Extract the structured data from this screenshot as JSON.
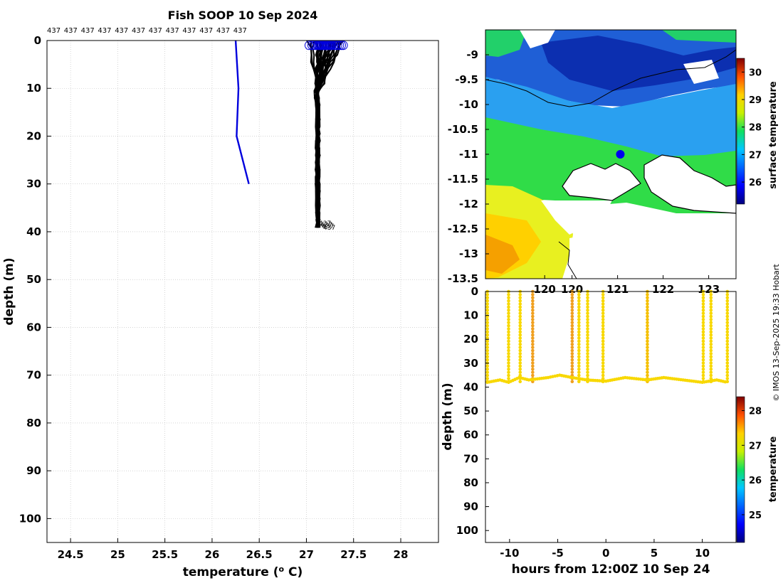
{
  "chart_data": [
    {
      "type": "line",
      "title": "Fish SOOP 10 Sep 2024",
      "xlabel": "temperature (",
      "xlabel_sup": "o",
      "xlabel_end": " C)",
      "ylabel": "depth (m)",
      "xlim": [
        24.25,
        28.4
      ],
      "ylim": [
        105,
        0
      ],
      "xticks": [
        24.5,
        25,
        25.5,
        26,
        26.5,
        27,
        27.5,
        28
      ],
      "xtick_labels": [
        "24.5",
        "25",
        "25.5",
        "26",
        "26.5",
        "27",
        "27.5",
        "28"
      ],
      "yticks": [
        0,
        10,
        20,
        30,
        40,
        50,
        60,
        70,
        80,
        90,
        100
      ],
      "ytick_labels": [
        "0",
        "10",
        "20",
        "30",
        "40",
        "50",
        "60",
        "70",
        "80",
        "90",
        "100"
      ],
      "grid": true,
      "profile_id_labels": [
        "437",
        "437",
        "437",
        "437",
        "437",
        "437",
        "437",
        "437",
        "437",
        "437",
        "437",
        "437"
      ],
      "end_label": "437",
      "series": [
        {
          "name": "climatology",
          "color": "#0000dd",
          "points": [
            [
              26.25,
              0
            ],
            [
              26.28,
              10
            ],
            [
              26.26,
              20
            ],
            [
              26.39,
              30
            ]
          ]
        },
        {
          "name": "fish profiles",
          "color": "#000000",
          "count": 26,
          "surface_temps": [
            27.03,
            27.06,
            27.08,
            27.1,
            27.12,
            27.13,
            27.15,
            27.16,
            27.17,
            27.18,
            27.19,
            27.2,
            27.21,
            27.22,
            27.23,
            27.24,
            27.25,
            27.27,
            27.29,
            27.31,
            27.33,
            27.35,
            27.37,
            27.39,
            27.14,
            27.26
          ],
          "bottom_temp": 27.11,
          "max_depth": 39
        }
      ],
      "markers": {
        "shape": "circle",
        "color": "#0000dd",
        "depth": 1
      }
    },
    {
      "type": "heatmap",
      "colorbar_label": "surface temperature",
      "colorbar_ticks": [
        "26",
        "27",
        "28",
        "29",
        "30"
      ],
      "colorbar_range": [
        25.2,
        30.5
      ],
      "ytick_labels": [
        "-9",
        "-9.5",
        "-10",
        "-10.5",
        "-11",
        "-11.5",
        "-12",
        "-12.5",
        "-13",
        "-13.5"
      ],
      "yticks": [
        -9,
        -9.5,
        -10,
        -10.5,
        -11,
        -11.5,
        -12,
        -12.5,
        -13,
        -13.5
      ],
      "ylim": [
        -13.5,
        -8.5
      ],
      "xtick_labels": [
        "120",
        "120",
        "121",
        "122",
        "123"
      ],
      "xticks": [
        119.4,
        120,
        121,
        122,
        123
      ],
      "xlim": [
        118.1,
        123.6
      ],
      "location_marker": {
        "lon": 121.06,
        "lat": -11.0,
        "color": "#0000ee"
      }
    },
    {
      "type": "scatter",
      "xlabel": "hours from 12:00Z 10 Sep 24",
      "ylabel": "depth (m)",
      "colorbar_label": "temperature",
      "colorbar_ticks": [
        "25",
        "26",
        "27",
        "28"
      ],
      "colorbar_range": [
        24.2,
        28.4
      ],
      "xlim": [
        -12.5,
        13.5
      ],
      "ylim": [
        105,
        0
      ],
      "xticks": [
        -10,
        -5,
        0,
        5,
        10
      ],
      "xtick_labels": [
        "-10",
        "-5",
        "0",
        "5",
        "10"
      ],
      "yticks": [
        0,
        10,
        20,
        30,
        40,
        50,
        60,
        70,
        80,
        90,
        100
      ],
      "ytick_labels": [
        "0",
        "10",
        "20",
        "30",
        "40",
        "50",
        "60",
        "70",
        "80",
        "90",
        "100"
      ],
      "casts": [
        {
          "t": -12.3,
          "temp": 27.1
        },
        {
          "t": -10.1,
          "temp": 27.1
        },
        {
          "t": -8.9,
          "temp": 27.1
        },
        {
          "t": -7.6,
          "temp": 27.4
        },
        {
          "t": -3.5,
          "temp": 27.4
        },
        {
          "t": -2.8,
          "temp": 27.1
        },
        {
          "t": -1.9,
          "temp": 27.1
        },
        {
          "t": -0.3,
          "temp": 27.1
        },
        {
          "t": 4.3,
          "temp": 27.2
        },
        {
          "t": 10.1,
          "temp": 27.1
        },
        {
          "t": 10.9,
          "temp": 27.1
        },
        {
          "t": 12.6,
          "temp": 27.1
        }
      ],
      "bottom_depth": [
        [
          -12.3,
          38
        ],
        [
          -11,
          37
        ],
        [
          -10.1,
          38
        ],
        [
          -9,
          36
        ],
        [
          -8,
          37
        ],
        [
          -6,
          36
        ],
        [
          -4.8,
          35
        ],
        [
          -3.5,
          36
        ],
        [
          -2,
          37
        ],
        [
          0,
          37.5
        ],
        [
          2,
          36
        ],
        [
          4.3,
          37
        ],
        [
          6,
          36
        ],
        [
          8,
          37
        ],
        [
          10,
          38
        ],
        [
          11.5,
          37
        ],
        [
          12.6,
          38
        ]
      ]
    }
  ],
  "credit": "© IMOS 13-Sep-2025 19:33 Hobart"
}
